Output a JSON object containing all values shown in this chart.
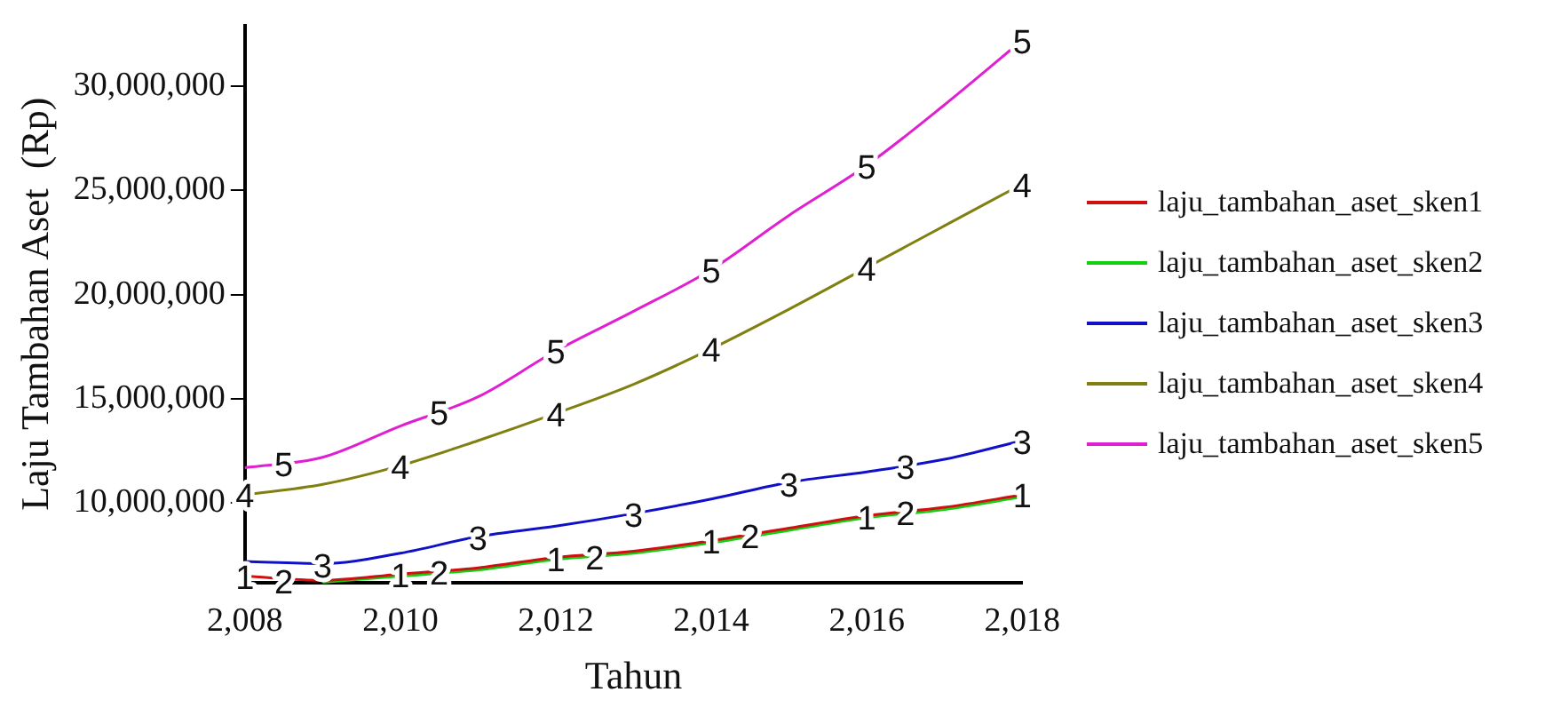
{
  "chart_data": {
    "type": "line",
    "xlabel": "Tahun",
    "ylabel": "Laju Tambahan Aset  (Rp)",
    "x": [
      2008,
      2009,
      2010,
      2011,
      2012,
      2013,
      2014,
      2015,
      2016,
      2017,
      2018
    ],
    "series": [
      {
        "name": "laju_tambahan_aset_sken1",
        "color": "#d01010",
        "values": [
          6500000,
          6300000,
          6600000,
          6900000,
          7400000,
          7700000,
          8200000,
          8800000,
          9400000,
          9800000,
          10400000
        ]
      },
      {
        "name": "laju_tambahan_aset_sken2",
        "color": "#10d010",
        "values": [
          null,
          6200000,
          6500000,
          6800000,
          7300000,
          7600000,
          8100000,
          8700000,
          9300000,
          9700000,
          10300000
        ]
      },
      {
        "name": "laju_tambahan_aset_sken3",
        "color": "#1010c8",
        "values": [
          7200000,
          7100000,
          7600000,
          8400000,
          8900000,
          9500000,
          10200000,
          11000000,
          11500000,
          12100000,
          13000000
        ]
      },
      {
        "name": "laju_tambahan_aset_sken4",
        "color": "#808010",
        "values": [
          10400000,
          10900000,
          11800000,
          13000000,
          14300000,
          15700000,
          17400000,
          19300000,
          21300000,
          23300000,
          25300000
        ]
      },
      {
        "name": "laju_tambahan_aset_sken5",
        "color": "#e020d0",
        "values": [
          11700000,
          12200000,
          13700000,
          15100000,
          17300000,
          19200000,
          21200000,
          23800000,
          26200000,
          29100000,
          32200000
        ]
      }
    ],
    "xlim": [
      2008,
      2018
    ],
    "xticks": [
      {
        "value": 2008,
        "label": "2,008"
      },
      {
        "value": 2010,
        "label": "2,010"
      },
      {
        "value": 2012,
        "label": "2,012"
      },
      {
        "value": 2014,
        "label": "2,014"
      },
      {
        "value": 2016,
        "label": "2,016"
      },
      {
        "value": 2018,
        "label": "2,018"
      }
    ],
    "ylim": [
      6200000,
      32900000
    ],
    "yticks": [
      {
        "value": 10000000,
        "label": "10,000,000"
      },
      {
        "value": 15000000,
        "label": "15,000,000"
      },
      {
        "value": 20000000,
        "label": "20,000,000"
      },
      {
        "value": 25000000,
        "label": "25,000,000"
      },
      {
        "value": 30000000,
        "label": "30,000,000"
      }
    ],
    "grid": false,
    "legend": "right",
    "annotations": [
      {
        "text": "5",
        "x": 2008.5,
        "y": 11900000
      },
      {
        "text": "5",
        "x": 2010.5,
        "y": 14400000
      },
      {
        "text": "5",
        "x": 2012,
        "y": 17300000
      },
      {
        "text": "5",
        "x": 2014,
        "y": 21200000
      },
      {
        "text": "5",
        "x": 2016,
        "y": 26200000
      },
      {
        "text": "5",
        "x": 2018,
        "y": 32200000
      },
      {
        "text": "4",
        "x": 2008,
        "y": 10430000
      },
      {
        "text": "4",
        "x": 2010,
        "y": 11800000
      },
      {
        "text": "4",
        "x": 2012,
        "y": 14300000
      },
      {
        "text": "4",
        "x": 2014,
        "y": 17400000
      },
      {
        "text": "4",
        "x": 2016,
        "y": 21300000
      },
      {
        "text": "4",
        "x": 2018,
        "y": 25300000
      },
      {
        "text": "3",
        "x": 2009,
        "y": 7070000
      },
      {
        "text": "3",
        "x": 2011,
        "y": 8360000
      },
      {
        "text": "3",
        "x": 2013,
        "y": 9500000
      },
      {
        "text": "3",
        "x": 2015,
        "y": 10950000
      },
      {
        "text": "3",
        "x": 2016.5,
        "y": 11800000
      },
      {
        "text": "3",
        "x": 2018,
        "y": 12960000
      },
      {
        "text": "1",
        "x": 2008,
        "y": 6490000
      },
      {
        "text": "1",
        "x": 2010,
        "y": 6570000
      },
      {
        "text": "1",
        "x": 2012,
        "y": 7350000
      },
      {
        "text": "1",
        "x": 2014,
        "y": 8200000
      },
      {
        "text": "1",
        "x": 2016,
        "y": 9370000
      },
      {
        "text": "1",
        "x": 2018,
        "y": 10430000
      },
      {
        "text": "2",
        "x": 2008.5,
        "y": 6300000
      },
      {
        "text": "2",
        "x": 2010.5,
        "y": 6700000
      },
      {
        "text": "2",
        "x": 2012.5,
        "y": 7450000
      },
      {
        "text": "2",
        "x": 2014.5,
        "y": 8450000
      },
      {
        "text": "2",
        "x": 2016.5,
        "y": 9550000
      }
    ]
  }
}
